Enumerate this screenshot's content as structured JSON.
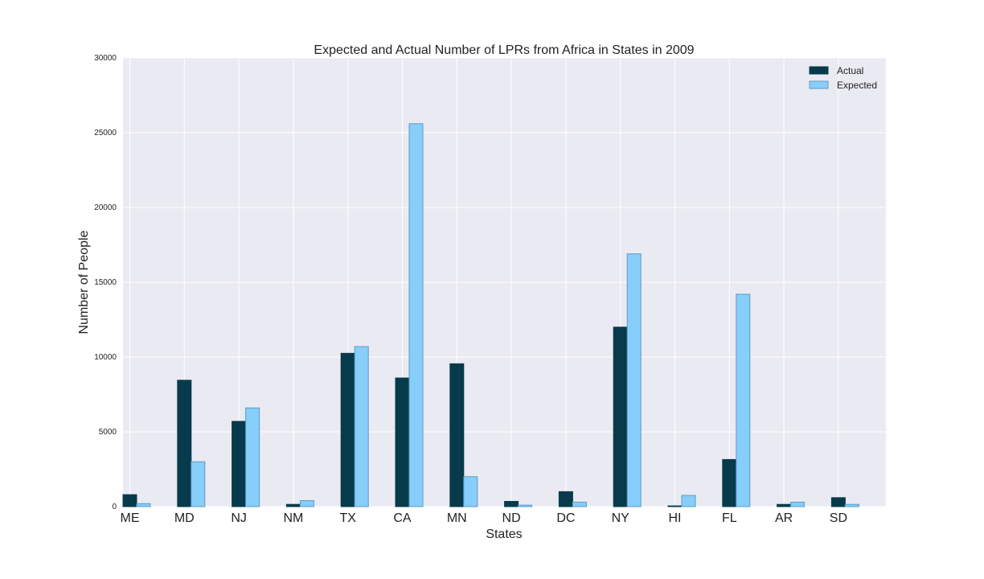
{
  "chart_data": {
    "type": "bar",
    "title": "Expected and Actual Number of LPRs from Africa in States in 2009",
    "xlabel": "States",
    "ylabel": "Number of People",
    "categories": [
      "ME",
      "MD",
      "NJ",
      "NM",
      "TX",
      "CA",
      "MN",
      "ND",
      "DC",
      "NY",
      "HI",
      "FL",
      "AR",
      "SD"
    ],
    "ylim": [
      0,
      30000
    ],
    "yticks": [
      0,
      5000,
      10000,
      15000,
      20000,
      25000,
      30000
    ],
    "grid": true,
    "legend_position": "top-right",
    "series": [
      {
        "name": "Actual",
        "color": "#073b4c",
        "values": [
          800,
          8450,
          5700,
          150,
          10250,
          8600,
          9550,
          350,
          1000,
          12000,
          50,
          3150,
          150,
          600
        ]
      },
      {
        "name": "Expected",
        "color": "#87cefa",
        "values": [
          200,
          3000,
          6600,
          400,
          10700,
          25600,
          2000,
          100,
          300,
          16900,
          750,
          14200,
          300,
          150
        ]
      }
    ]
  }
}
